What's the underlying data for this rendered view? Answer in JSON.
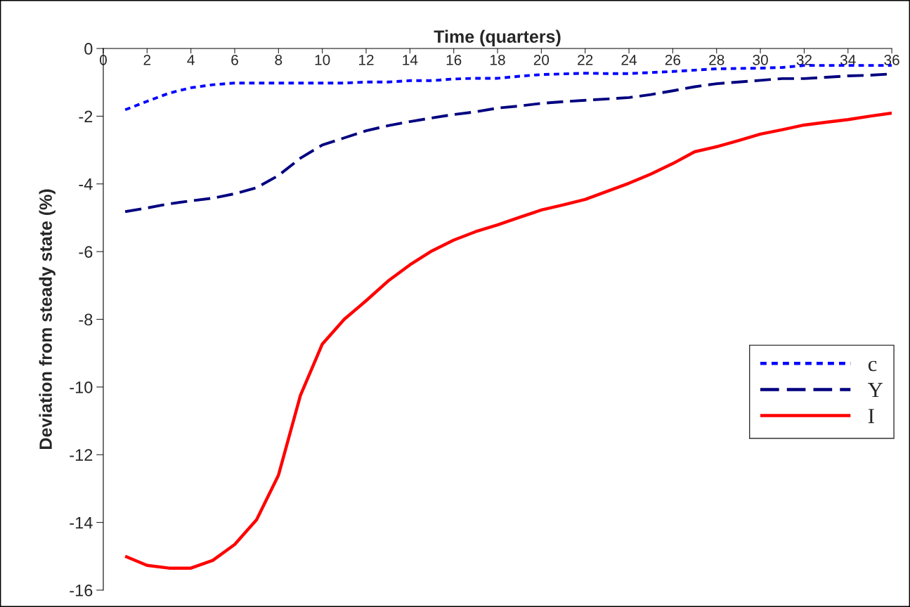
{
  "chart_data": {
    "type": "line",
    "xlabel": "Time (quarters)",
    "ylabel": "Deviation from steady state (%)",
    "x": [
      1,
      2,
      3,
      4,
      5,
      6,
      7,
      8,
      9,
      10,
      11,
      12,
      13,
      14,
      15,
      16,
      17,
      18,
      19,
      20,
      21,
      22,
      23,
      24,
      25,
      26,
      27,
      28,
      29,
      30,
      31,
      32,
      33,
      34,
      35,
      36
    ],
    "xlim": [
      0,
      36
    ],
    "xticks": [
      0,
      2,
      4,
      6,
      8,
      10,
      12,
      14,
      16,
      18,
      20,
      22,
      24,
      26,
      28,
      30,
      32,
      34,
      36
    ],
    "ylim": [
      -16,
      0
    ],
    "yticks": [
      -16,
      -14,
      -12,
      -10,
      -8,
      -6,
      -4,
      -2,
      0
    ],
    "grid": false,
    "legend": "right",
    "marker": "none",
    "series": [
      {
        "name": "c",
        "color": "#0000ff",
        "line_style": "dotted",
        "values": [
          -1.81,
          -1.56,
          -1.32,
          -1.16,
          -1.07,
          -1.02,
          -1.02,
          -1.02,
          -1.02,
          -1.02,
          -1.02,
          -0.99,
          -0.99,
          -0.95,
          -0.95,
          -0.9,
          -0.88,
          -0.88,
          -0.82,
          -0.77,
          -0.75,
          -0.73,
          -0.74,
          -0.74,
          -0.71,
          -0.68,
          -0.64,
          -0.6,
          -0.59,
          -0.58,
          -0.56,
          -0.5,
          -0.5,
          -0.5,
          -0.5,
          -0.5
        ]
      },
      {
        "name": "Y",
        "color": "#000080",
        "line_style": "dashed",
        "values": [
          -4.82,
          -4.71,
          -4.59,
          -4.5,
          -4.42,
          -4.29,
          -4.11,
          -3.75,
          -3.24,
          -2.85,
          -2.64,
          -2.43,
          -2.28,
          -2.16,
          -2.05,
          -1.95,
          -1.87,
          -1.76,
          -1.7,
          -1.62,
          -1.57,
          -1.53,
          -1.49,
          -1.45,
          -1.36,
          -1.25,
          -1.13,
          -1.04,
          -0.99,
          -0.94,
          -0.89,
          -0.89,
          -0.85,
          -0.81,
          -0.79,
          -0.75
        ]
      },
      {
        "name": "I",
        "color": "#ff0000",
        "line_style": "solid",
        "values": [
          -15.0,
          -15.27,
          -15.35,
          -15.35,
          -15.12,
          -14.65,
          -13.92,
          -12.6,
          -10.25,
          -8.73,
          -8.0,
          -7.45,
          -6.87,
          -6.39,
          -5.98,
          -5.66,
          -5.41,
          -5.21,
          -4.99,
          -4.77,
          -4.62,
          -4.46,
          -4.22,
          -3.98,
          -3.71,
          -3.4,
          -3.05,
          -2.9,
          -2.72,
          -2.53,
          -2.4,
          -2.26,
          -2.18,
          -2.1,
          -2.0,
          -1.91
        ]
      }
    ]
  }
}
